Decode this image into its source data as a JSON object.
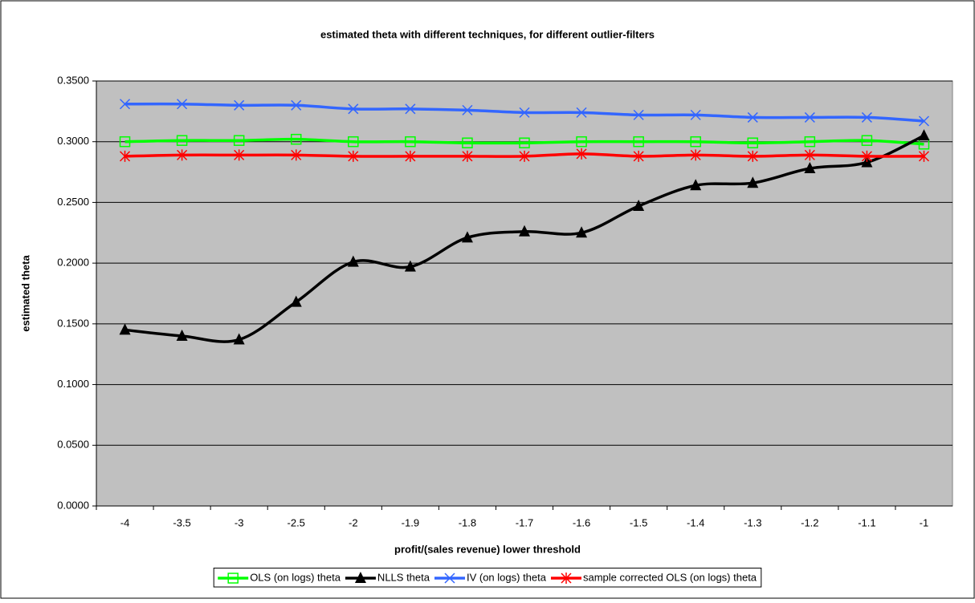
{
  "chart_data": {
    "type": "line",
    "title": "estimated theta with different techniques, for different outlier-filters",
    "x_label": "profit/(sales revenue) lower threshold",
    "y_label": "estimated theta",
    "categories": [
      "-4",
      "-3.5",
      "-3",
      "-2.5",
      "-2",
      "-1.9",
      "-1.8",
      "-1.7",
      "-1.6",
      "-1.5",
      "-1.4",
      "-1.3",
      "-1.2",
      "-1.1",
      "-1"
    ],
    "ylim": [
      0,
      0.35
    ],
    "yticks": [
      {
        "value": 0,
        "label": "0.0000"
      },
      {
        "value": 0.05,
        "label": "0.0500"
      },
      {
        "value": 0.1,
        "label": "0.1000"
      },
      {
        "value": 0.15,
        "label": "0.1500"
      },
      {
        "value": 0.2,
        "label": "0.2000"
      },
      {
        "value": 0.25,
        "label": "0.2500"
      },
      {
        "value": 0.3,
        "label": "0.3000"
      },
      {
        "value": 0.35,
        "label": "0.3500"
      }
    ],
    "grid": true,
    "legend": "bottom",
    "series": [
      {
        "name": "OLS (on logs) theta",
        "color": "#00ff00",
        "marker": "square",
        "values": [
          0.3,
          0.301,
          0.301,
          0.302,
          0.3,
          0.3,
          0.299,
          0.299,
          0.3,
          0.3,
          0.3,
          0.299,
          0.3,
          0.301,
          0.298
        ]
      },
      {
        "name": "NLLS theta",
        "color": "#000000",
        "marker": "triangle",
        "values": [
          0.145,
          0.14,
          0.137,
          0.168,
          0.201,
          0.197,
          0.221,
          0.226,
          0.225,
          0.247,
          0.264,
          0.266,
          0.278,
          0.283,
          0.305
        ]
      },
      {
        "name": "IV (on logs) theta",
        "color": "#3366ff",
        "marker": "x",
        "values": [
          0.331,
          0.331,
          0.33,
          0.33,
          0.327,
          0.327,
          0.326,
          0.324,
          0.324,
          0.322,
          0.322,
          0.32,
          0.32,
          0.32,
          0.317
        ]
      },
      {
        "name": "sample corrected OLS (on logs) theta",
        "color": "#ff0000",
        "marker": "star",
        "values": [
          0.288,
          0.289,
          0.289,
          0.289,
          0.288,
          0.288,
          0.288,
          0.288,
          0.29,
          0.288,
          0.289,
          0.288,
          0.289,
          0.288,
          0.288
        ]
      }
    ]
  }
}
